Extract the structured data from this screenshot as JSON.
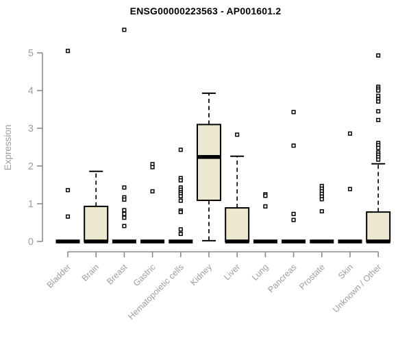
{
  "title": "ENSG00000223563 - AP001601.2",
  "chart_data": {
    "type": "boxplot",
    "title": "ENSG00000223563 - AP001601.2",
    "xlabel": "",
    "ylabel": "Expression",
    "ylim": [
      0,
      5
    ],
    "yticks": [
      0,
      1,
      2,
      3,
      4,
      5
    ],
    "grid": false,
    "legend": "none",
    "colors": {
      "box_fill": "#EDE8D0",
      "box_stroke": "#000000",
      "median": "#000000",
      "whisker": "#000000",
      "outlier": "#000000",
      "axis": "#8a8a8a",
      "tick_label": "#9a9ea4",
      "axis_label": "#9a9ea4"
    },
    "categories": [
      "Bladder",
      "Brain",
      "Breast",
      "Gastric",
      "Hematopoietic cells",
      "Kidney",
      "Liver",
      "Lung",
      "Pancreas",
      "Prostate",
      "Skin",
      "Unknown / Other"
    ],
    "series": [
      {
        "category": "Bladder",
        "q1": 0,
        "median": 0,
        "q3": 0,
        "whisker_low": 0,
        "whisker_high": 0,
        "outliers": [
          5.05,
          1.36,
          0.66
        ]
      },
      {
        "category": "Brain",
        "q1": 0,
        "median": 0,
        "q3": 0.93,
        "whisker_low": 0,
        "whisker_high": 1.86,
        "outliers": []
      },
      {
        "category": "Breast",
        "q1": 0,
        "median": 0,
        "q3": 0,
        "whisker_low": 0,
        "whisker_high": 0,
        "outliers": [
          5.61,
          1.43,
          1.17,
          1.11,
          0.83,
          0.73,
          0.63,
          0.41
        ]
      },
      {
        "category": "Gastric",
        "q1": 0,
        "median": 0,
        "q3": 0,
        "whisker_low": 0,
        "whisker_high": 0,
        "outliers": [
          2.05,
          1.97,
          1.33
        ]
      },
      {
        "category": "Hematopoietic cells",
        "q1": 0,
        "median": 0,
        "q3": 0,
        "whisker_low": 0,
        "whisker_high": 0,
        "outliers": [
          2.43,
          1.68,
          1.62,
          1.43,
          1.37,
          1.31,
          1.26,
          1.2,
          1.08,
          0.82,
          0.78,
          0.32,
          0.2
        ]
      },
      {
        "category": "Kidney",
        "q1": 1.09,
        "median": 2.24,
        "q3": 3.1,
        "whisker_low": 0.02,
        "whisker_high": 3.93,
        "outliers": []
      },
      {
        "category": "Liver",
        "q1": 0,
        "median": 0,
        "q3": 0.89,
        "whisker_low": 0,
        "whisker_high": 2.26,
        "outliers": [
          2.83
        ]
      },
      {
        "category": "Lung",
        "q1": 0,
        "median": 0,
        "q3": 0,
        "whisker_low": 0,
        "whisker_high": 0,
        "outliers": [
          1.25,
          1.21,
          0.93
        ]
      },
      {
        "category": "Pancreas",
        "q1": 0,
        "median": 0,
        "q3": 0,
        "whisker_low": 0,
        "whisker_high": 0,
        "outliers": [
          3.43,
          2.54,
          0.73,
          0.57
        ]
      },
      {
        "category": "Prostate",
        "q1": 0,
        "median": 0,
        "q3": 0,
        "whisker_low": 0,
        "whisker_high": 0,
        "outliers": [
          1.47,
          1.4,
          1.33,
          1.26,
          1.19,
          1.12,
          0.8
        ]
      },
      {
        "category": "Skin",
        "q1": 0,
        "median": 0,
        "q3": 0,
        "whisker_low": 0,
        "whisker_high": 0,
        "outliers": [
          2.86,
          1.39
        ]
      },
      {
        "category": "Unknown / Other",
        "q1": 0,
        "median": 0,
        "q3": 0.78,
        "whisker_low": 0,
        "whisker_high": 2.06,
        "outliers": [
          4.93,
          4.1,
          4.05,
          4.0,
          3.86,
          3.77,
          3.71,
          3.45,
          3.22,
          2.61,
          2.55,
          2.48,
          2.36,
          2.3,
          2.24,
          2.17
        ]
      }
    ]
  }
}
